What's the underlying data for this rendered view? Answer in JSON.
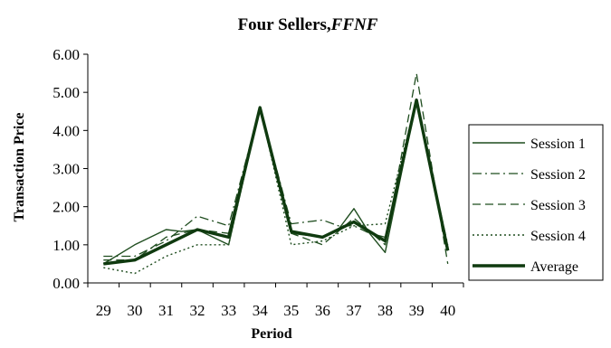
{
  "chart_data": {
    "type": "line",
    "title": "Four Sellers,",
    "title_italic": "FFNF",
    "xlabel": "Period",
    "ylabel": "Transaction Price",
    "ylim": [
      0,
      6
    ],
    "yticks": [
      "0.00",
      "1.00",
      "2.00",
      "3.00",
      "4.00",
      "5.00",
      "6.00"
    ],
    "categories": [
      "29",
      "30",
      "31",
      "32",
      "33",
      "34",
      "35",
      "36",
      "37",
      "38",
      "39",
      "40"
    ],
    "grid": false,
    "legend_position": "right",
    "series": [
      {
        "name": "Session 1",
        "style": "solid",
        "color": "#1f4d1f",
        "x": [
          29,
          30,
          31,
          31.5,
          32,
          32.5,
          33,
          34,
          35,
          36,
          36.5,
          37,
          37.5,
          38,
          39,
          40
        ],
        "values": [
          0.5,
          1.0,
          1.4,
          1.35,
          1.4,
          1.2,
          1.0,
          4.6,
          1.3,
          1.2,
          1.4,
          1.95,
          1.3,
          0.8,
          4.8,
          0.9
        ]
      },
      {
        "name": "Session 2",
        "style": "dashdot",
        "color": "#1f4d1f",
        "x": [
          29,
          30,
          31,
          32,
          33,
          34,
          35,
          36,
          36.5,
          37,
          37.5,
          38,
          39,
          40
        ],
        "values": [
          0.7,
          0.7,
          1.1,
          1.75,
          1.5,
          4.6,
          1.55,
          1.65,
          1.5,
          1.5,
          1.3,
          1.2,
          4.7,
          1.0
        ]
      },
      {
        "name": "Session 3",
        "style": "dashed",
        "color": "#1f4d1f",
        "x": [
          29,
          30,
          31,
          32,
          33,
          34,
          35,
          36,
          37,
          38,
          39,
          40
        ],
        "values": [
          0.6,
          0.6,
          1.2,
          1.4,
          1.3,
          4.6,
          1.3,
          1.0,
          1.7,
          1.0,
          5.5,
          0.5
        ]
      },
      {
        "name": "Session 4",
        "style": "dotted",
        "color": "#1f4d1f",
        "x": [
          29,
          30,
          31,
          32,
          33,
          34,
          35,
          36,
          37,
          38,
          39,
          40
        ],
        "values": [
          0.4,
          0.25,
          0.7,
          1.0,
          1.0,
          4.6,
          1.0,
          1.1,
          1.5,
          1.55,
          4.8,
          0.8
        ]
      },
      {
        "name": "Average",
        "style": "thick",
        "color": "#0f3a0f",
        "x": [
          29,
          30,
          31,
          32,
          33,
          34,
          35,
          36,
          37,
          38,
          39,
          40
        ],
        "values": [
          0.5,
          0.6,
          1.0,
          1.4,
          1.2,
          4.6,
          1.35,
          1.2,
          1.6,
          1.1,
          4.8,
          0.85
        ]
      }
    ]
  }
}
